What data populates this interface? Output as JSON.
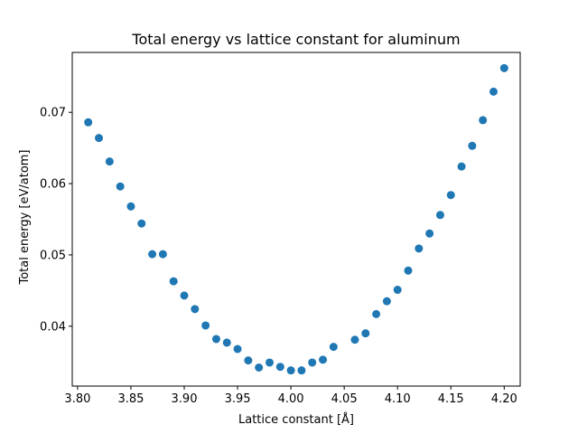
{
  "chart_data": {
    "type": "scatter",
    "title": "Total energy vs lattice constant for aluminum",
    "xlabel": "Lattice constant [Å]",
    "ylabel": "Total energy [eV/atom]",
    "xlim": [
      3.795,
      4.215
    ],
    "ylim": [
      0.0316,
      0.0784
    ],
    "xticks": [
      3.8,
      3.85,
      3.9,
      3.95,
      4.0,
      4.05,
      4.1,
      4.15,
      4.2
    ],
    "xtick_labels": [
      "3.80",
      "3.85",
      "3.90",
      "3.95",
      "4.00",
      "4.05",
      "4.10",
      "4.15",
      "4.20"
    ],
    "yticks": [
      0.04,
      0.05,
      0.06,
      0.07
    ],
    "ytick_labels": [
      "0.04",
      "0.05",
      "0.06",
      "0.07"
    ],
    "grid": false,
    "marker_color": "#1f77b4",
    "x": [
      3.81,
      3.82,
      3.83,
      3.84,
      3.85,
      3.86,
      3.87,
      3.88,
      3.89,
      3.9,
      3.91,
      3.92,
      3.93,
      3.94,
      3.95,
      3.96,
      3.97,
      3.98,
      3.99,
      4.0,
      4.01,
      4.02,
      4.03,
      4.04,
      4.06,
      4.07,
      4.08,
      4.09,
      4.1,
      4.11,
      4.12,
      4.13,
      4.14,
      4.15,
      4.16,
      4.17,
      4.18,
      4.19,
      4.2
    ],
    "y": [
      0.0686,
      0.0664,
      0.0631,
      0.0596,
      0.0568,
      0.0544,
      0.0501,
      0.0501,
      0.0463,
      0.0443,
      0.0424,
      0.0401,
      0.0382,
      0.0377,
      0.0368,
      0.0352,
      0.0342,
      0.0349,
      0.0343,
      0.0338,
      0.0338,
      0.0349,
      0.0353,
      0.0371,
      0.0381,
      0.039,
      0.0417,
      0.0435,
      0.0451,
      0.0478,
      0.0509,
      0.053,
      0.0556,
      0.0584,
      0.0624,
      0.0653,
      0.0689,
      0.0729,
      0.0762
    ]
  }
}
